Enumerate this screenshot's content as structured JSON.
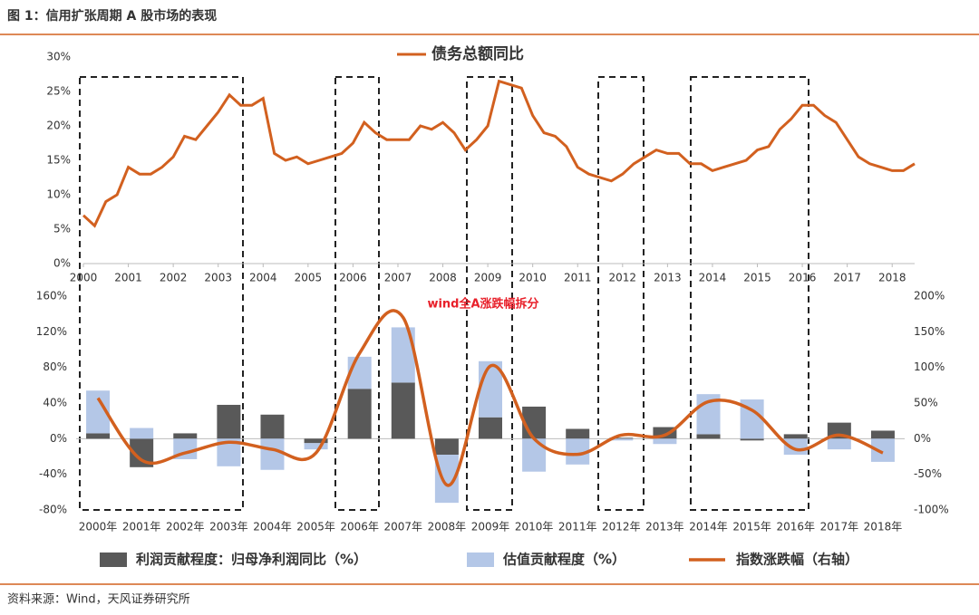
{
  "title": "图 1：信用扩张周期 A 股市场的表现",
  "source": "资料来源：Wind，天风证券研究所",
  "chart_data": [
    {
      "type": "line",
      "x": [
        2000,
        2000.25,
        2000.5,
        2000.75,
        2001,
        2001.25,
        2001.5,
        2001.75,
        2002,
        2002.25,
        2002.5,
        2002.75,
        2003,
        2003.25,
        2003.5,
        2003.75,
        2004,
        2004.25,
        2004.5,
        2004.75,
        2005,
        2005.25,
        2005.5,
        2005.75,
        2006,
        2006.25,
        2006.5,
        2006.75,
        2007,
        2007.25,
        2007.5,
        2007.75,
        2008,
        2008.25,
        2008.5,
        2008.75,
        2009,
        2009.25,
        2009.5,
        2009.75,
        2010,
        2010.25,
        2010.5,
        2010.75,
        2011,
        2011.25,
        2011.5,
        2011.75,
        2012,
        2012.25,
        2012.5,
        2012.75,
        2013,
        2013.25,
        2013.5,
        2013.75,
        2014,
        2014.25,
        2014.5,
        2014.75,
        2015,
        2015.25,
        2015.5,
        2015.75,
        2016,
        2016.25,
        2016.5,
        2016.75,
        2017,
        2017.25,
        2017.5,
        2017.75,
        2018,
        2018.25,
        2018.5
      ],
      "series": [
        {
          "name": "债务总额同比",
          "color": "#d2601f",
          "values": [
            7,
            5.5,
            9,
            10,
            14,
            13,
            13,
            14,
            15.5,
            18.5,
            18,
            20,
            22,
            24.5,
            23,
            23,
            24,
            16,
            15,
            15.5,
            14.5,
            15,
            15.5,
            16,
            17.5,
            20.5,
            19,
            18,
            18,
            18,
            20,
            19.5,
            20.5,
            19,
            16.5,
            18,
            20,
            26.5,
            26,
            25.5,
            21.5,
            19,
            18.5,
            17,
            14,
            13,
            12.5,
            12,
            13,
            14.5,
            15.5,
            16.5,
            16,
            16,
            14.5,
            14.5,
            13.5,
            14,
            14.5,
            15,
            16.5,
            17,
            19.5,
            21,
            23,
            23,
            21.5,
            20.5,
            18,
            15.5,
            14.5,
            14,
            13.5,
            13.5,
            14.5
          ]
        }
      ],
      "xlim": [
        2000,
        2018.5
      ],
      "xticks": [
        2000,
        2001,
        2002,
        2003,
        2004,
        2005,
        2006,
        2007,
        2008,
        2009,
        2010,
        2011,
        2012,
        2013,
        2014,
        2015,
        2016,
        2017,
        2018
      ],
      "ylim": [
        0,
        30
      ],
      "yticks": [
        {
          "value": 0,
          "label": "0%"
        },
        {
          "value": 5,
          "label": "5%"
        },
        {
          "value": 10,
          "label": "10%"
        },
        {
          "value": 15,
          "label": "15%"
        },
        {
          "value": 20,
          "label": "20%"
        },
        {
          "value": 25,
          "label": "25%"
        },
        {
          "value": 30,
          "label": "30%"
        }
      ]
    },
    {
      "type": "bar-line",
      "title": "wind全A涨跌幅拆分",
      "categories": [
        "2000年",
        "2001年",
        "2002年",
        "2003年",
        "2004年",
        "2005年",
        "2006年",
        "2007年",
        "2008年",
        "2009年",
        "2010年",
        "2011年",
        "2012年",
        "2013年",
        "2014年",
        "2015年",
        "2016年",
        "2017年",
        "2018年"
      ],
      "series": [
        {
          "name": "利润贡献程度：归母净利润同比（%）",
          "color": "#595959",
          "values": [
            6,
            -32,
            6,
            38,
            27,
            -5,
            56,
            63,
            -18,
            24,
            36,
            11,
            1,
            13,
            5,
            -2,
            5,
            18,
            9
          ]
        },
        {
          "name": "估值贡献程度（%）",
          "color": "#b4c7e7",
          "values": [
            48,
            12,
            -23,
            -31,
            -35,
            -7,
            36,
            62,
            -54,
            63,
            -37,
            -29,
            -2,
            -6,
            45,
            44,
            -18,
            -12,
            -26
          ]
        },
        {
          "name": "指数涨跌幅（右轴）",
          "color": "#d2601f",
          "axis": "y2",
          "values": [
            57,
            -30,
            -20,
            -5,
            -15,
            -20,
            120,
            170,
            -65,
            102,
            0,
            -22,
            5,
            5,
            52,
            40,
            -15,
            5,
            -20
          ]
        }
      ],
      "ylim": [
        -80,
        160
      ],
      "yticks": [
        {
          "value": -80,
          "label": "-80%"
        },
        {
          "value": -40,
          "label": "-40%"
        },
        {
          "value": 0,
          "label": "0%"
        },
        {
          "value": 40,
          "label": "40%"
        },
        {
          "value": 80,
          "label": "80%"
        },
        {
          "value": 120,
          "label": "120%"
        },
        {
          "value": 160,
          "label": "160%"
        }
      ],
      "y2lim": [
        -100,
        200
      ],
      "y2ticks": [
        {
          "value": -100,
          "label": "-100%"
        },
        {
          "value": -50,
          "label": "-50%"
        },
        {
          "value": 0,
          "label": "0%"
        },
        {
          "value": 50,
          "label": "50%"
        },
        {
          "value": 100,
          "label": "100%"
        },
        {
          "value": 150,
          "label": "150%"
        },
        {
          "value": 200,
          "label": "200%"
        }
      ]
    }
  ]
}
